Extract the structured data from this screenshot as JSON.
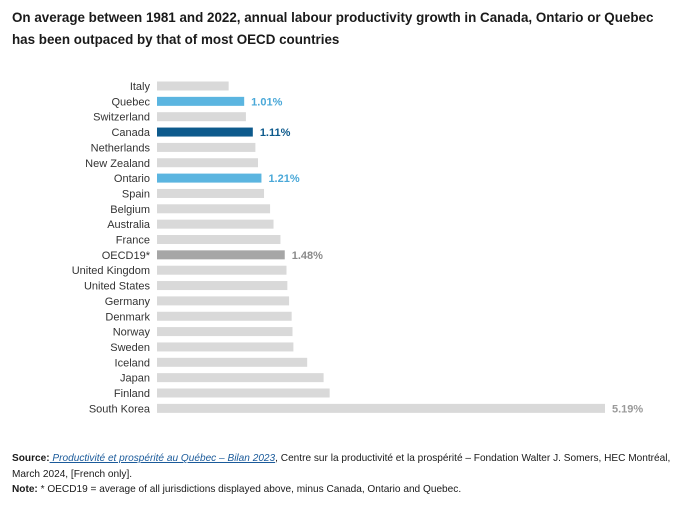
{
  "title": "On average between 1981 and 2022, annual labour productivity growth in Canada, Ontario or Quebec has been outpaced by that of most OECD countries",
  "colors": {
    "default": "#d9d9d9",
    "oecd": "#a6a6a6",
    "quebec_ontario": "#5bb5e0",
    "canada": "#0d5a8c",
    "south_korea_label": "#9a9a9a"
  },
  "chart_data": {
    "type": "bar",
    "orientation": "horizontal",
    "categories": [
      "Italy",
      "Quebec",
      "Switzerland",
      "Canada",
      "Netherlands",
      "New Zealand",
      "Ontario",
      "Spain",
      "Belgium",
      "Australia",
      "France",
      "OECD19*",
      "United Kingdom",
      "United States",
      "Germany",
      "Denmark",
      "Norway",
      "Sweden",
      "Iceland",
      "Japan",
      "Finland",
      "South Korea"
    ],
    "values": [
      0.83,
      1.01,
      1.03,
      1.11,
      1.14,
      1.17,
      1.21,
      1.24,
      1.31,
      1.35,
      1.43,
      1.48,
      1.5,
      1.51,
      1.53,
      1.56,
      1.57,
      1.58,
      1.74,
      1.93,
      2.0,
      5.19
    ],
    "labels": [
      "",
      "1.01%",
      "",
      "1.11%",
      "",
      "",
      "1.21%",
      "",
      "",
      "",
      "",
      "1.48%",
      "",
      "",
      "",
      "",
      "",
      "",
      "",
      "",
      "",
      "5.19%"
    ],
    "highlight": [
      "default",
      "quebec_ontario",
      "default",
      "canada",
      "default",
      "default",
      "quebec_ontario",
      "default",
      "default",
      "default",
      "default",
      "oecd",
      "default",
      "default",
      "default",
      "default",
      "default",
      "default",
      "default",
      "default",
      "default",
      "default"
    ],
    "xlim": [
      0,
      5.19
    ],
    "grid": false,
    "legend": "none"
  },
  "footer": {
    "source_label": "Source:",
    "source_link": " Productivité et prospérité au Québec – Bilan 2023",
    "source_text": ", Centre sur la productivité et la prospérité – Fondation Walter J. Somers, HEC Montréal, March 2024, [French only].",
    "note_label": "Note:",
    "note_text": " * OECD19 = average of all jurisdictions displayed above, minus Canada, Ontario and Quebec."
  }
}
